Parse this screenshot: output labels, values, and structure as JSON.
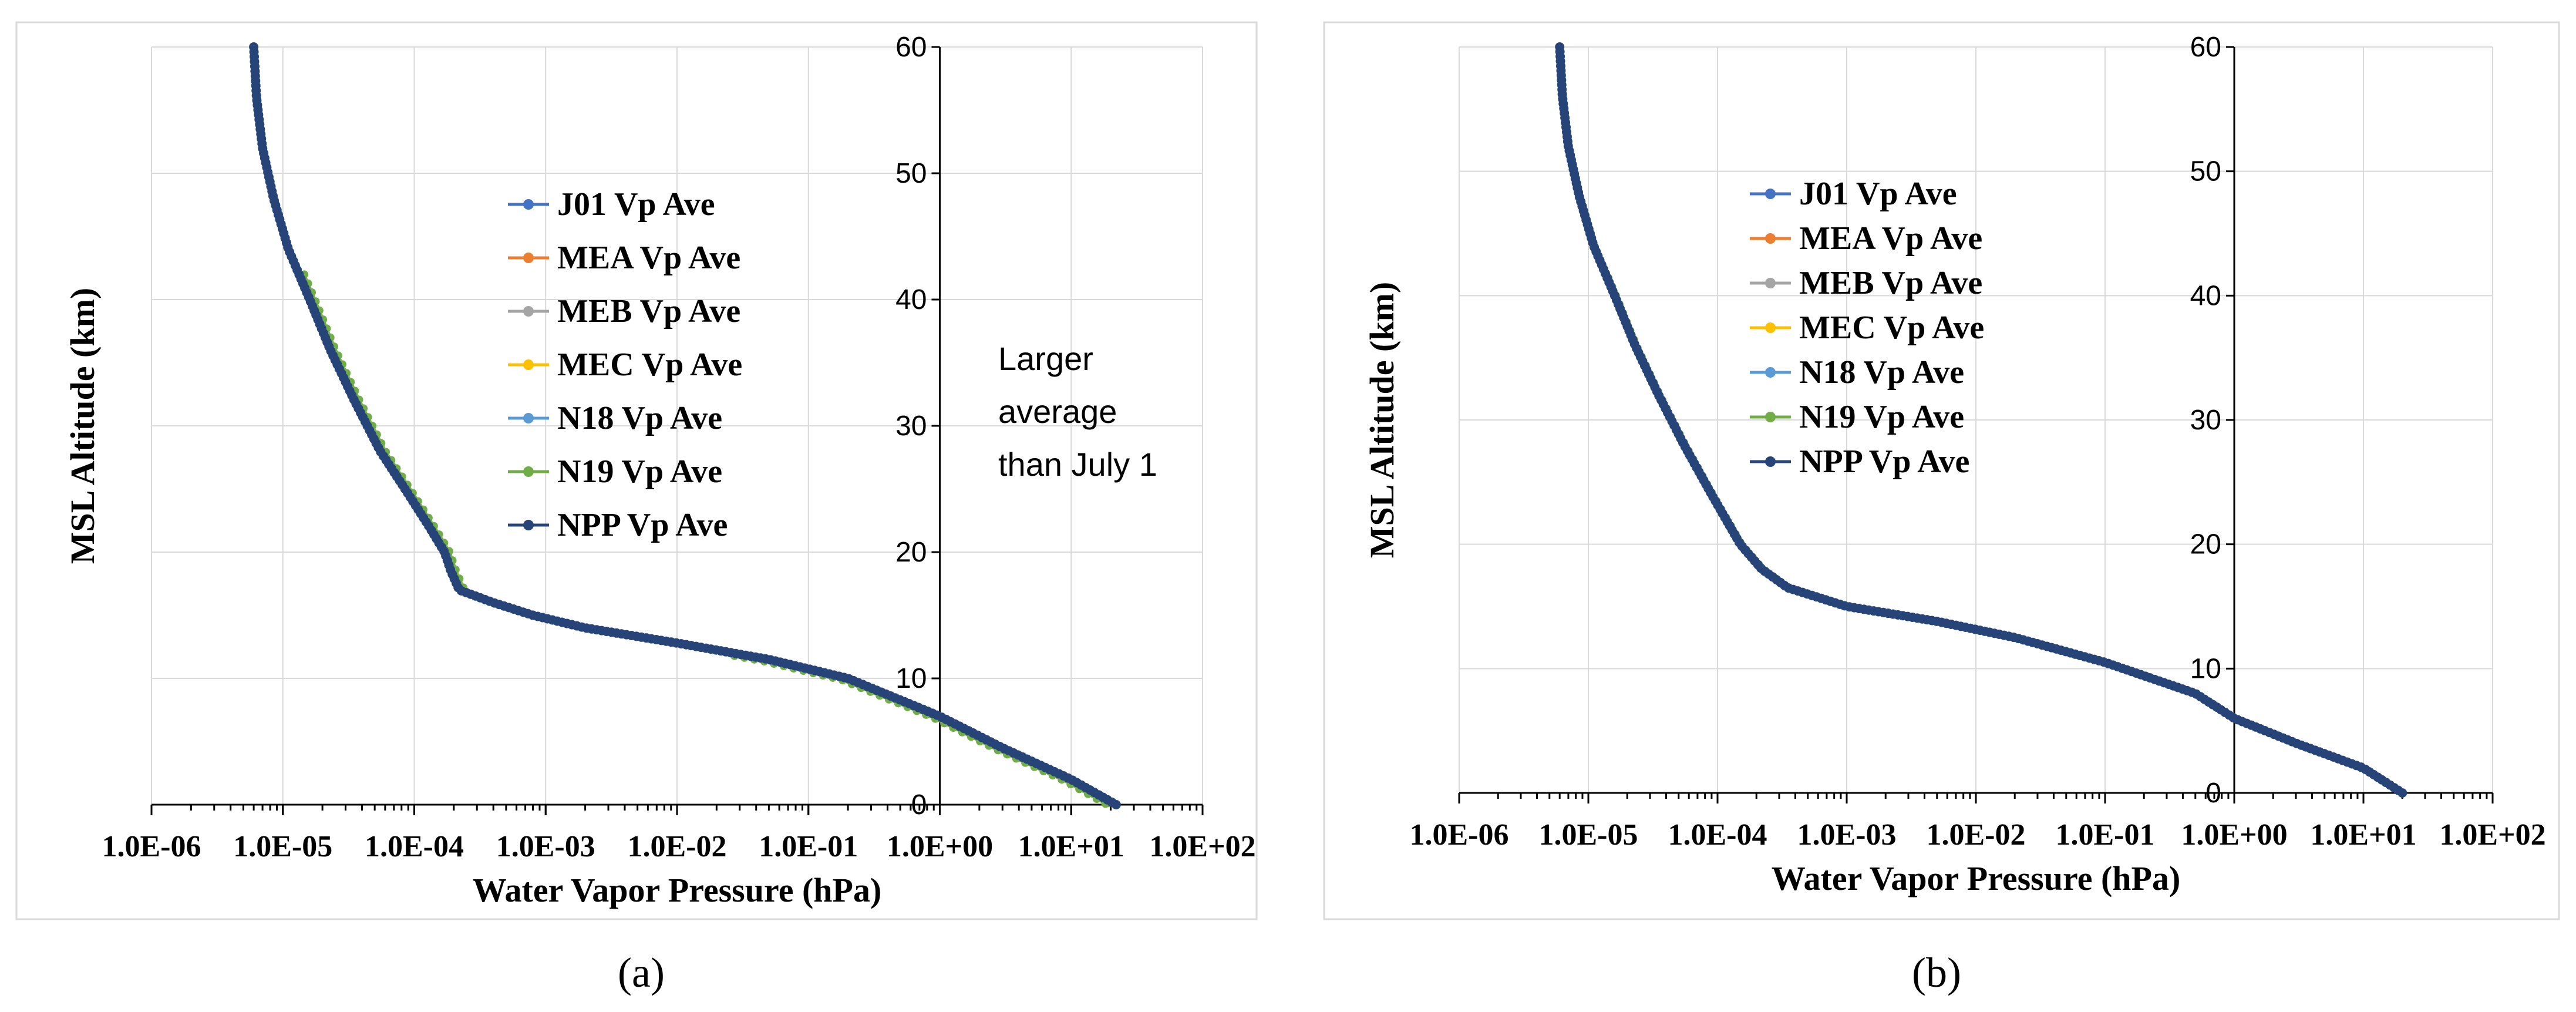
{
  "chart_data": [
    {
      "type": "scatter",
      "panel_label": "(a)",
      "xlabel": "Water Vapor Pressure (hPa)",
      "ylabel": "MSL Altitude (km)",
      "x_scale": "log",
      "xlim": [
        1e-06,
        100
      ],
      "ylim": [
        0,
        60
      ],
      "x_tick_labels": [
        "1.0E-06",
        "1.0E-05",
        "1.0E-04",
        "1.0E-03",
        "1.0E-02",
        "1.0E-01",
        "1.0E+00",
        "1.0E+01",
        "1.0E+02"
      ],
      "y_tick_labels": [
        "0",
        "10",
        "20",
        "30",
        "40",
        "50",
        "60"
      ],
      "y_axis_crossing_x": 1,
      "legend": [
        "J01 Vp Ave",
        "MEA Vp Ave",
        "MEB Vp Ave",
        "MEC Vp Ave",
        "N18 Vp Ave",
        "N19 Vp Ave",
        "NPP Vp Ave"
      ],
      "colors": [
        "#4472c4",
        "#ed7d31",
        "#a5a5a5",
        "#ffc000",
        "#5b9bd5",
        "#70ad47",
        "#264478"
      ],
      "annotation": [
        "Larger",
        "average",
        "than July 1"
      ],
      "profile": [
        [
          6e-06,
          60
        ],
        [
          6.3e-06,
          56
        ],
        [
          7e-06,
          52
        ],
        [
          8.5e-06,
          48
        ],
        [
          1.1e-05,
          44
        ],
        [
          1.6e-05,
          40
        ],
        [
          2.3e-05,
          36
        ],
        [
          3.5e-05,
          32
        ],
        [
          5.5e-05,
          28
        ],
        [
          8.5e-05,
          25
        ],
        [
          0.00013,
          22
        ],
        [
          0.00017,
          20
        ],
        [
          0.00019,
          18.5
        ],
        [
          0.00022,
          17
        ],
        [
          0.0004,
          16
        ],
        [
          0.0008,
          15
        ],
        [
          0.002,
          14
        ],
        [
          0.01,
          12.8
        ],
        [
          0.05,
          11.5
        ],
        [
          0.2,
          10
        ],
        [
          1,
          7
        ],
        [
          3,
          4.5
        ],
        [
          10,
          2
        ],
        [
          22,
          0
        ]
      ],
      "n19_offset_upper": 1.3,
      "n19_offset_lower": -0.8
    },
    {
      "type": "scatter",
      "panel_label": "(b)",
      "xlabel": "Water Vapor Pressure (hPa)",
      "ylabel": "MSL Altitude (km)",
      "x_scale": "log",
      "xlim": [
        1e-06,
        100
      ],
      "ylim": [
        0,
        60
      ],
      "x_tick_labels": [
        "1.0E-06",
        "1.0E-05",
        "1.0E-04",
        "1.0E-03",
        "1.0E-02",
        "1.0E-01",
        "1.0E+00",
        "1.0E+01",
        "1.0E+02"
      ],
      "y_tick_labels": [
        "0",
        "10",
        "20",
        "30",
        "40",
        "50",
        "60"
      ],
      "y_axis_crossing_x": 1,
      "legend": [
        "J01 Vp Ave",
        "MEA Vp Ave",
        "MEB Vp Ave",
        "MEC Vp Ave",
        "N18 Vp Ave",
        "N19 Vp Ave",
        "NPP Vp Ave"
      ],
      "colors": [
        "#4472c4",
        "#ed7d31",
        "#a5a5a5",
        "#ffc000",
        "#5b9bd5",
        "#70ad47",
        "#264478"
      ],
      "annotation": [],
      "profile": [
        [
          6e-06,
          60
        ],
        [
          6.3e-06,
          56
        ],
        [
          7e-06,
          52
        ],
        [
          8.5e-06,
          48
        ],
        [
          1.1e-05,
          44
        ],
        [
          1.6e-05,
          40
        ],
        [
          2.3e-05,
          36
        ],
        [
          3.5e-05,
          32
        ],
        [
          5.5e-05,
          28
        ],
        [
          9e-05,
          24
        ],
        [
          0.00015,
          20
        ],
        [
          0.00022,
          18
        ],
        [
          0.00035,
          16.5
        ],
        [
          0.001,
          15
        ],
        [
          0.005,
          13.8
        ],
        [
          0.02,
          12.5
        ],
        [
          0.1,
          10.5
        ],
        [
          0.5,
          8
        ],
        [
          1,
          6
        ],
        [
          3,
          4
        ],
        [
          10,
          2
        ],
        [
          20,
          0
        ]
      ],
      "n19_offset_upper": 0.3,
      "n19_offset_lower": 0
    }
  ]
}
